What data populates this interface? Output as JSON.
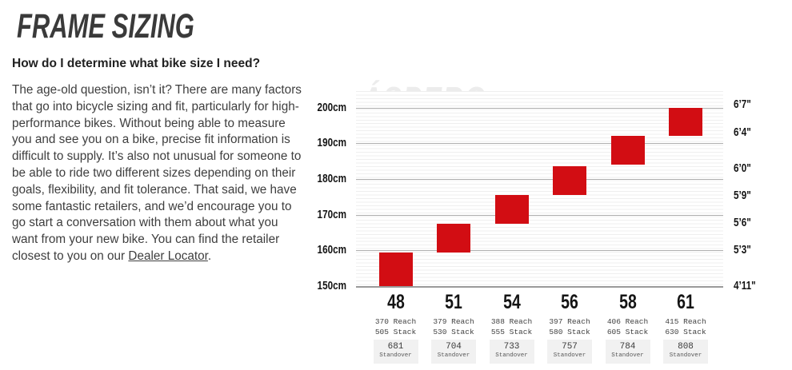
{
  "header": {
    "title": "FRAME SIZING",
    "subheading": "How do I determine what bike size I need?"
  },
  "body": {
    "paragraph": "The age-old question, isn’t it? There are many factors that go into bicycle sizing and fit, particularly for high-performance bikes. Without being able to measure you and see you on a bike, precise fit information is difficult to supply. It’s also not unusual for someone to be able to ride two different sizes depending on their goals, flexibility, and fit tolerance. That said, we have some fantastic retailers, and we’d encourage you to go start a conversation with them about what you want from your new bike. You can find the retailer closest to you on our ",
    "link_text": "Dealer Locator",
    "after_link": "."
  },
  "chart_data": {
    "type": "bar",
    "subtype": "floating-range-columns",
    "watermark": "ÁSPERO",
    "bar_color": "#d20d13",
    "grid": true,
    "y_axis_left": {
      "unit": "cm",
      "range": [
        150,
        200
      ],
      "ticks": [
        {
          "label": "200cm",
          "cm": 200
        },
        {
          "label": "190cm",
          "cm": 190
        },
        {
          "label": "180cm",
          "cm": 180
        },
        {
          "label": "170cm",
          "cm": 170
        },
        {
          "label": "160cm",
          "cm": 160
        },
        {
          "label": "150cm",
          "cm": 150
        }
      ]
    },
    "y_axis_right": {
      "unit": "feet-inches",
      "ticks": [
        {
          "label": "6’7\"",
          "cm": 200.7
        },
        {
          "label": "6’4\"",
          "cm": 193.0
        },
        {
          "label": "6’0\"",
          "cm": 182.9
        },
        {
          "label": "5’9\"",
          "cm": 175.3
        },
        {
          "label": "5’6\"",
          "cm": 167.6
        },
        {
          "label": "5’3\"",
          "cm": 160.0
        },
        {
          "label": "4’11\"",
          "cm": 149.9
        }
      ]
    },
    "labels": {
      "reach": "Reach",
      "stack": "Stack",
      "standover": "Standover"
    },
    "sizes": [
      {
        "size": "48",
        "rider_height_cm": [
          150.0,
          159.5
        ],
        "reach_mm": 370,
        "stack_mm": 505,
        "standover_mm": 681
      },
      {
        "size": "51",
        "rider_height_cm": [
          159.5,
          167.5
        ],
        "reach_mm": 379,
        "stack_mm": 530,
        "standover_mm": 704
      },
      {
        "size": "54",
        "rider_height_cm": [
          167.5,
          175.5
        ],
        "reach_mm": 388,
        "stack_mm": 555,
        "standover_mm": 733
      },
      {
        "size": "56",
        "rider_height_cm": [
          175.5,
          183.5
        ],
        "reach_mm": 397,
        "stack_mm": 580,
        "standover_mm": 757
      },
      {
        "size": "58",
        "rider_height_cm": [
          184.0,
          192.0
        ],
        "reach_mm": 406,
        "stack_mm": 605,
        "standover_mm": 784
      },
      {
        "size": "61",
        "rider_height_cm": [
          192.0,
          200.0
        ],
        "reach_mm": 415,
        "stack_mm": 630,
        "standover_mm": 808
      }
    ]
  }
}
